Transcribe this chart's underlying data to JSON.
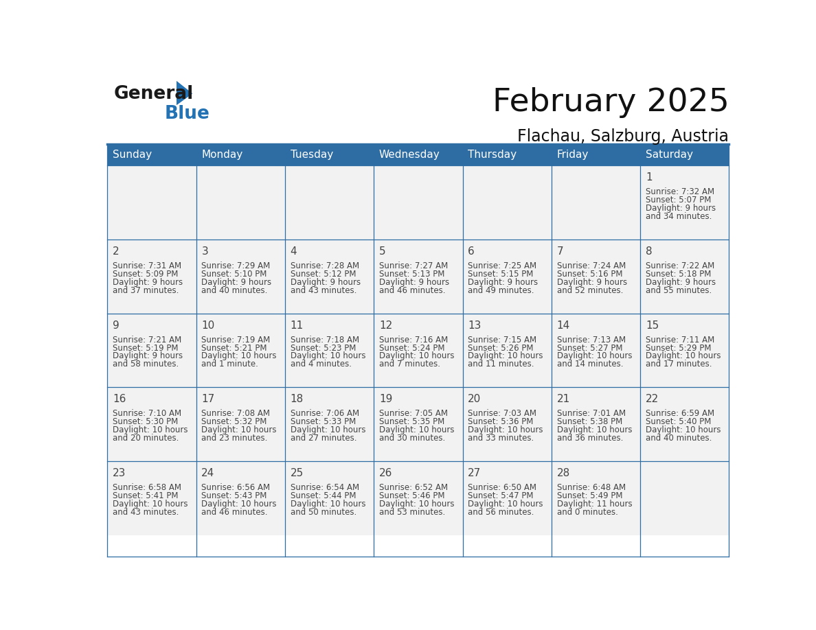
{
  "title": "February 2025",
  "subtitle": "Flachau, Salzburg, Austria",
  "header_color": "#2E6DA4",
  "header_text_color": "#FFFFFF",
  "cell_bg_color": "#F2F2F2",
  "border_color": "#2E6DA4",
  "text_color": "#444444",
  "day_headers": [
    "Sunday",
    "Monday",
    "Tuesday",
    "Wednesday",
    "Thursday",
    "Friday",
    "Saturday"
  ],
  "days": [
    {
      "day": 1,
      "col": 6,
      "row": 0,
      "sunrise": "7:32 AM",
      "sunset": "5:07 PM",
      "daylight_h": "9 hours",
      "daylight_m": "and 34 minutes."
    },
    {
      "day": 2,
      "col": 0,
      "row": 1,
      "sunrise": "7:31 AM",
      "sunset": "5:09 PM",
      "daylight_h": "9 hours",
      "daylight_m": "and 37 minutes."
    },
    {
      "day": 3,
      "col": 1,
      "row": 1,
      "sunrise": "7:29 AM",
      "sunset": "5:10 PM",
      "daylight_h": "9 hours",
      "daylight_m": "and 40 minutes."
    },
    {
      "day": 4,
      "col": 2,
      "row": 1,
      "sunrise": "7:28 AM",
      "sunset": "5:12 PM",
      "daylight_h": "9 hours",
      "daylight_m": "and 43 minutes."
    },
    {
      "day": 5,
      "col": 3,
      "row": 1,
      "sunrise": "7:27 AM",
      "sunset": "5:13 PM",
      "daylight_h": "9 hours",
      "daylight_m": "and 46 minutes."
    },
    {
      "day": 6,
      "col": 4,
      "row": 1,
      "sunrise": "7:25 AM",
      "sunset": "5:15 PM",
      "daylight_h": "9 hours",
      "daylight_m": "and 49 minutes."
    },
    {
      "day": 7,
      "col": 5,
      "row": 1,
      "sunrise": "7:24 AM",
      "sunset": "5:16 PM",
      "daylight_h": "9 hours",
      "daylight_m": "and 52 minutes."
    },
    {
      "day": 8,
      "col": 6,
      "row": 1,
      "sunrise": "7:22 AM",
      "sunset": "5:18 PM",
      "daylight_h": "9 hours",
      "daylight_m": "and 55 minutes."
    },
    {
      "day": 9,
      "col": 0,
      "row": 2,
      "sunrise": "7:21 AM",
      "sunset": "5:19 PM",
      "daylight_h": "9 hours",
      "daylight_m": "and 58 minutes."
    },
    {
      "day": 10,
      "col": 1,
      "row": 2,
      "sunrise": "7:19 AM",
      "sunset": "5:21 PM",
      "daylight_h": "10 hours",
      "daylight_m": "and 1 minute."
    },
    {
      "day": 11,
      "col": 2,
      "row": 2,
      "sunrise": "7:18 AM",
      "sunset": "5:23 PM",
      "daylight_h": "10 hours",
      "daylight_m": "and 4 minutes."
    },
    {
      "day": 12,
      "col": 3,
      "row": 2,
      "sunrise": "7:16 AM",
      "sunset": "5:24 PM",
      "daylight_h": "10 hours",
      "daylight_m": "and 7 minutes."
    },
    {
      "day": 13,
      "col": 4,
      "row": 2,
      "sunrise": "7:15 AM",
      "sunset": "5:26 PM",
      "daylight_h": "10 hours",
      "daylight_m": "and 11 minutes."
    },
    {
      "day": 14,
      "col": 5,
      "row": 2,
      "sunrise": "7:13 AM",
      "sunset": "5:27 PM",
      "daylight_h": "10 hours",
      "daylight_m": "and 14 minutes."
    },
    {
      "day": 15,
      "col": 6,
      "row": 2,
      "sunrise": "7:11 AM",
      "sunset": "5:29 PM",
      "daylight_h": "10 hours",
      "daylight_m": "and 17 minutes."
    },
    {
      "day": 16,
      "col": 0,
      "row": 3,
      "sunrise": "7:10 AM",
      "sunset": "5:30 PM",
      "daylight_h": "10 hours",
      "daylight_m": "and 20 minutes."
    },
    {
      "day": 17,
      "col": 1,
      "row": 3,
      "sunrise": "7:08 AM",
      "sunset": "5:32 PM",
      "daylight_h": "10 hours",
      "daylight_m": "and 23 minutes."
    },
    {
      "day": 18,
      "col": 2,
      "row": 3,
      "sunrise": "7:06 AM",
      "sunset": "5:33 PM",
      "daylight_h": "10 hours",
      "daylight_m": "and 27 minutes."
    },
    {
      "day": 19,
      "col": 3,
      "row": 3,
      "sunrise": "7:05 AM",
      "sunset": "5:35 PM",
      "daylight_h": "10 hours",
      "daylight_m": "and 30 minutes."
    },
    {
      "day": 20,
      "col": 4,
      "row": 3,
      "sunrise": "7:03 AM",
      "sunset": "5:36 PM",
      "daylight_h": "10 hours",
      "daylight_m": "and 33 minutes."
    },
    {
      "day": 21,
      "col": 5,
      "row": 3,
      "sunrise": "7:01 AM",
      "sunset": "5:38 PM",
      "daylight_h": "10 hours",
      "daylight_m": "and 36 minutes."
    },
    {
      "day": 22,
      "col": 6,
      "row": 3,
      "sunrise": "6:59 AM",
      "sunset": "5:40 PM",
      "daylight_h": "10 hours",
      "daylight_m": "and 40 minutes."
    },
    {
      "day": 23,
      "col": 0,
      "row": 4,
      "sunrise": "6:58 AM",
      "sunset": "5:41 PM",
      "daylight_h": "10 hours",
      "daylight_m": "and 43 minutes."
    },
    {
      "day": 24,
      "col": 1,
      "row": 4,
      "sunrise": "6:56 AM",
      "sunset": "5:43 PM",
      "daylight_h": "10 hours",
      "daylight_m": "and 46 minutes."
    },
    {
      "day": 25,
      "col": 2,
      "row": 4,
      "sunrise": "6:54 AM",
      "sunset": "5:44 PM",
      "daylight_h": "10 hours",
      "daylight_m": "and 50 minutes."
    },
    {
      "day": 26,
      "col": 3,
      "row": 4,
      "sunrise": "6:52 AM",
      "sunset": "5:46 PM",
      "daylight_h": "10 hours",
      "daylight_m": "and 53 minutes."
    },
    {
      "day": 27,
      "col": 4,
      "row": 4,
      "sunrise": "6:50 AM",
      "sunset": "5:47 PM",
      "daylight_h": "10 hours",
      "daylight_m": "and 56 minutes."
    },
    {
      "day": 28,
      "col": 5,
      "row": 4,
      "sunrise": "6:48 AM",
      "sunset": "5:49 PM",
      "daylight_h": "11 hours",
      "daylight_m": "and 0 minutes."
    }
  ],
  "logo_color_general": "#1a1a1a",
  "logo_color_blue": "#2272B4",
  "logo_triangle_color": "#2272B4",
  "fig_width": 11.88,
  "fig_height": 9.18
}
